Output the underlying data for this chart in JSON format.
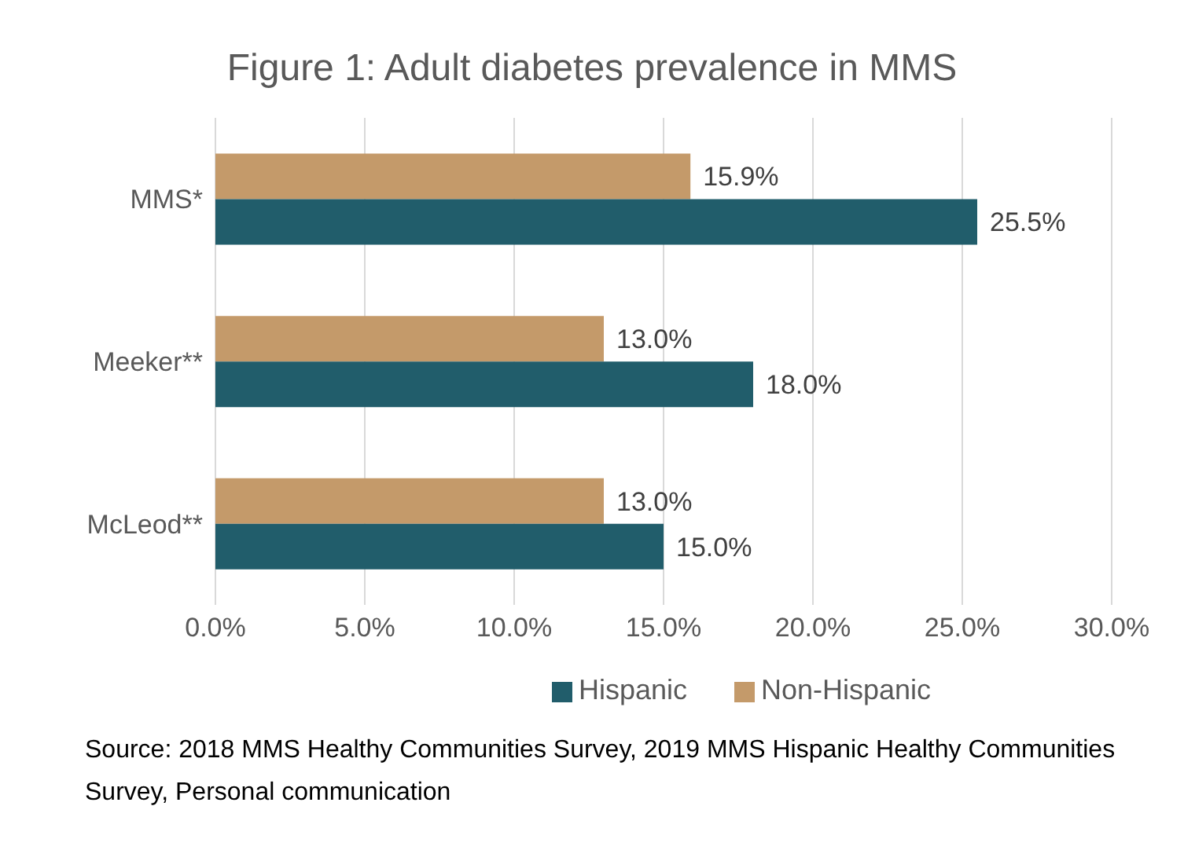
{
  "chart_data": {
    "type": "bar",
    "orientation": "horizontal",
    "title": "Figure 1: Adult diabetes prevalence in MMS",
    "categories": [
      "MMS*",
      "Meeker**",
      "McLeod**"
    ],
    "series": [
      {
        "name": "Non-Hispanic",
        "color": "#c49a6a",
        "values": [
          15.9,
          13.0,
          13.0
        ],
        "value_labels": [
          "15.9%",
          "13.0%",
          "13.0%"
        ]
      },
      {
        "name": "Hispanic",
        "color": "#215d6b",
        "values": [
          25.5,
          18.0,
          15.0
        ],
        "value_labels": [
          "25.5%",
          "18.0%",
          "15.0%"
        ]
      }
    ],
    "xlim": [
      0,
      30
    ],
    "xticks": [
      {
        "value": 0,
        "label": "0.0%"
      },
      {
        "value": 5,
        "label": "5.0%"
      },
      {
        "value": 10,
        "label": "10.0%"
      },
      {
        "value": 15,
        "label": "15.0%"
      },
      {
        "value": 20,
        "label": "20.0%"
      },
      {
        "value": 25,
        "label": "25.0%"
      },
      {
        "value": 30,
        "label": "30.0%"
      }
    ],
    "grid": "x",
    "legend": "bottom",
    "annotations": [
      "Source:  2018 MMS Healthy Communities Survey, 2019 MMS Hispanic Healthy Communities Survey, Personal communication"
    ]
  }
}
